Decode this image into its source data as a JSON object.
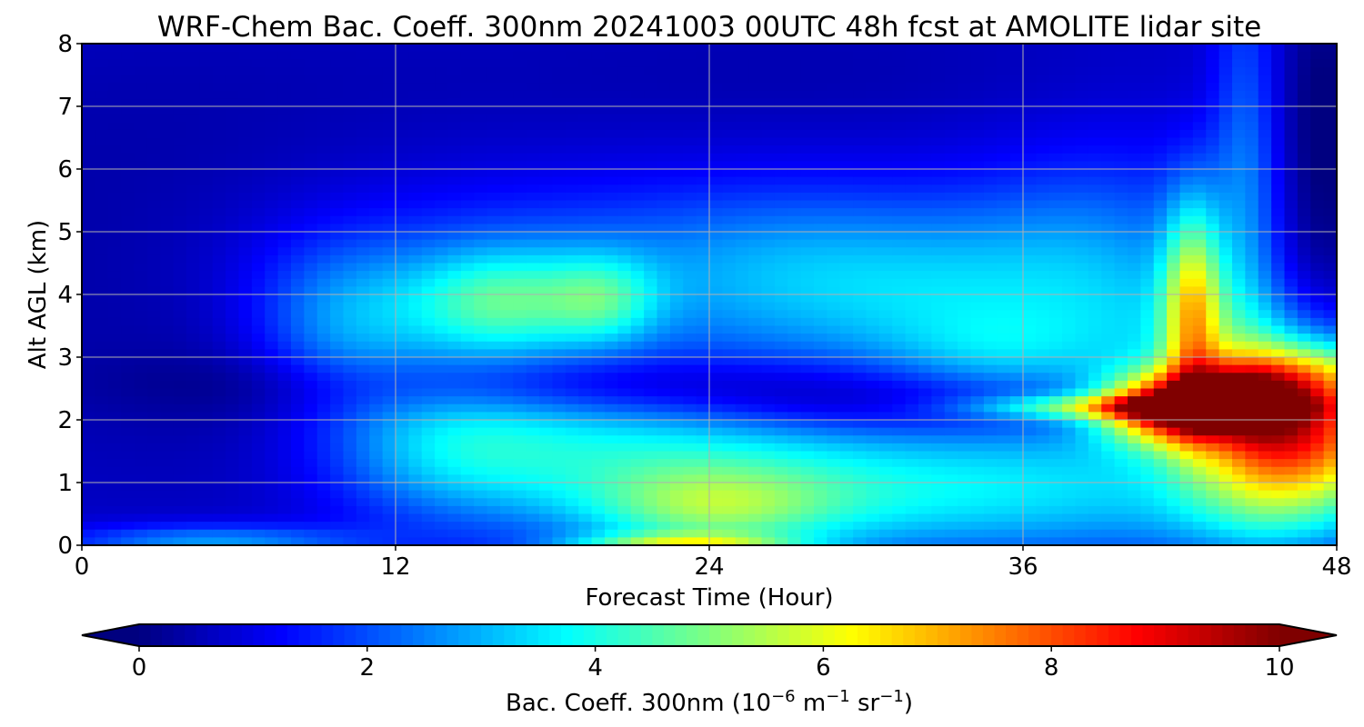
{
  "chart_data": {
    "type": "heatmap",
    "title": "WRF-Chem Bac. Coeff. 300nm  20241003 00UTC 48h fcst at AMOLITE lidar site",
    "xlabel": "Forecast Time (Hour)",
    "ylabel": "Alt AGL (km)",
    "xlim": [
      0,
      48
    ],
    "ylim": [
      0,
      8
    ],
    "x_ticks": [
      0,
      12,
      24,
      36,
      48
    ],
    "y_ticks": [
      0,
      1,
      2,
      3,
      4,
      5,
      6,
      7,
      8
    ],
    "grid": true,
    "colormap": "jet",
    "colorbar": {
      "label": "Bac. Coeff. 300nm",
      "units_base": "10",
      "units_exp": "−6",
      "units_m": "m",
      "units_m_exp": "−1",
      "units_sr": "sr",
      "units_sr_exp": "−1",
      "range": [
        0,
        10
      ],
      "ticks": [
        0,
        2,
        4,
        6,
        8,
        10
      ],
      "extend": "both",
      "orientation": "horizontal",
      "placement": "bottom"
    },
    "features": [
      {
        "x": 0,
        "y": 4.5,
        "sx": 10,
        "sy": 3.5,
        "v": -0.6
      },
      {
        "x": 28,
        "y": 7.5,
        "sx": 14,
        "sy": 1.2,
        "v": -0.5
      },
      {
        "x": 10,
        "y": 3.5,
        "sx": 2.5,
        "sy": 0.9,
        "v": 1.8
      },
      {
        "x": 16,
        "y": 3.85,
        "sx": 2.5,
        "sy": 0.6,
        "v": 2.6
      },
      {
        "x": 20,
        "y": 3.9,
        "sx": 1.5,
        "sy": 0.5,
        "v": 1.8
      },
      {
        "x": 18,
        "y": 4.3,
        "sx": 7,
        "sy": 1.0,
        "v": 1.3
      },
      {
        "x": 27,
        "y": 4.3,
        "sx": 4,
        "sy": 1.0,
        "v": 1.2
      },
      {
        "x": 33,
        "y": 4.0,
        "sx": 4,
        "sy": 1.0,
        "v": 1.6
      },
      {
        "x": 39,
        "y": 4.2,
        "sx": 3.5,
        "sy": 1.4,
        "v": 1.6
      },
      {
        "x": 44,
        "y": 3.4,
        "sx": 3,
        "sy": 0.7,
        "v": 1.2
      },
      {
        "x": 35,
        "y": 3.0,
        "sx": 3,
        "sy": 0.5,
        "v": 1.0
      },
      {
        "x": 20,
        "y": 1.5,
        "sx": 7,
        "sy": 0.8,
        "v": 2.6
      },
      {
        "x": 14,
        "y": 1.7,
        "sx": 3,
        "sy": 0.9,
        "v": 1.3
      },
      {
        "x": 24,
        "y": 0.55,
        "sx": 3.5,
        "sy": 0.5,
        "v": 2.8
      },
      {
        "x": 31,
        "y": 0.8,
        "sx": 5,
        "sy": 0.7,
        "v": 1.7
      },
      {
        "x": 39,
        "y": 0.9,
        "sx": 5,
        "sy": 0.8,
        "v": 1.6
      },
      {
        "x": 46,
        "y": 0.5,
        "sx": 3,
        "sy": 0.6,
        "v": 1.5
      },
      {
        "x": 5,
        "y": 0.05,
        "sx": 4,
        "sy": 0.2,
        "v": 2.0
      },
      {
        "x": 23,
        "y": 0.02,
        "sx": 3,
        "sy": 0.12,
        "v": 3.0
      },
      {
        "x": 22,
        "y": 2.55,
        "sx": 10,
        "sy": 0.35,
        "v": -1.2
      },
      {
        "x": 31,
        "y": 2.15,
        "sx": 6,
        "sy": 0.3,
        "v": -0.9
      },
      {
        "x": 8,
        "y": 2.0,
        "sx": 4,
        "sy": 1.2,
        "v": -0.5
      },
      {
        "x": 40,
        "y": 2.2,
        "sx": 4,
        "sy": 0.14,
        "v": 3.5
      },
      {
        "x": 41.5,
        "y": 2.2,
        "sx": 1.8,
        "sy": 0.4,
        "v": 6.5
      },
      {
        "x": 42.5,
        "y": 3.8,
        "sx": 0.8,
        "sy": 1.2,
        "v": 4.0
      },
      {
        "x": 46.5,
        "y": 1.85,
        "sx": 2.8,
        "sy": 0.8,
        "v": 7.5
      },
      {
        "x": 44.5,
        "y": 2.35,
        "sx": 1.6,
        "sy": 0.4,
        "v": 3.0
      },
      {
        "x": 47,
        "y": 2.7,
        "sx": 2.5,
        "sy": 0.4,
        "v": 2.0
      },
      {
        "x": 44.5,
        "y": 6.0,
        "sx": 0.9,
        "sy": 2.5,
        "v": 1.4
      },
      {
        "x": 47.5,
        "y": 6.0,
        "sx": 1.2,
        "sy": 2.5,
        "v": -1.0
      }
    ]
  }
}
